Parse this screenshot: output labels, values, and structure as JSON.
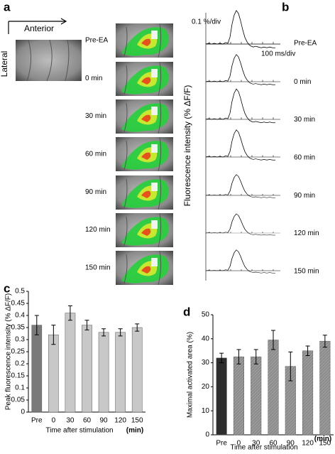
{
  "panels": {
    "a": {
      "label": "a",
      "anterior": "Anterior",
      "lateral": "Lateral"
    },
    "b": {
      "label": "b",
      "scale_y": "0.1 %/div",
      "scale_x": "100 ms/div",
      "ylabel": "Fluorescence intensity (% ΔF/F)"
    },
    "times": [
      "Pre-EA",
      "0 min",
      "30 min",
      "60 min",
      "90 min",
      "120 min",
      "150 min"
    ]
  },
  "chart_data": [
    {
      "panel": "c",
      "type": "bar",
      "ylabel": "Peak fluorescence intensity (% ΔF/F)",
      "xlabel": "Time after stimulation",
      "unit_label": "(min)",
      "categories": [
        "Pre",
        "0",
        "30",
        "60",
        "90",
        "120",
        "150"
      ],
      "values": [
        0.36,
        0.32,
        0.41,
        0.36,
        0.33,
        0.33,
        0.35
      ],
      "errors": [
        0.04,
        0.04,
        0.03,
        0.02,
        0.015,
        0.015,
        0.015
      ],
      "colors": [
        "#7a7a7a",
        "#c8c8c8",
        "#c8c8c8",
        "#c8c8c8",
        "#c8c8c8",
        "#c8c8c8",
        "#c8c8c8"
      ],
      "ylim": [
        0,
        0.5
      ],
      "yticks": [
        0,
        0.05,
        0.1,
        0.15,
        0.2,
        0.25,
        0.3,
        0.35,
        0.4,
        0.45,
        0.5
      ],
      "hatch": false
    },
    {
      "panel": "d",
      "type": "bar",
      "ylabel": "Maximal activated area (%)",
      "xlabel": "Time after stimulation",
      "unit_label": "(min)",
      "categories": [
        "Pre",
        "0",
        "30",
        "60",
        "90",
        "120",
        "150"
      ],
      "values": [
        32,
        32.5,
        32.5,
        39.5,
        28.5,
        35,
        39
      ],
      "errors": [
        2,
        3,
        3,
        4,
        6,
        2,
        2.5
      ],
      "colors": [
        "#2e2e2e",
        "#8c8c8c",
        "#8c8c8c",
        "#8c8c8c",
        "#8c8c8c",
        "#8c8c8c",
        "#8c8c8c"
      ],
      "ylim": [
        0,
        50
      ],
      "yticks": [
        0,
        10,
        20,
        30,
        40,
        50
      ],
      "hatch": true
    }
  ]
}
